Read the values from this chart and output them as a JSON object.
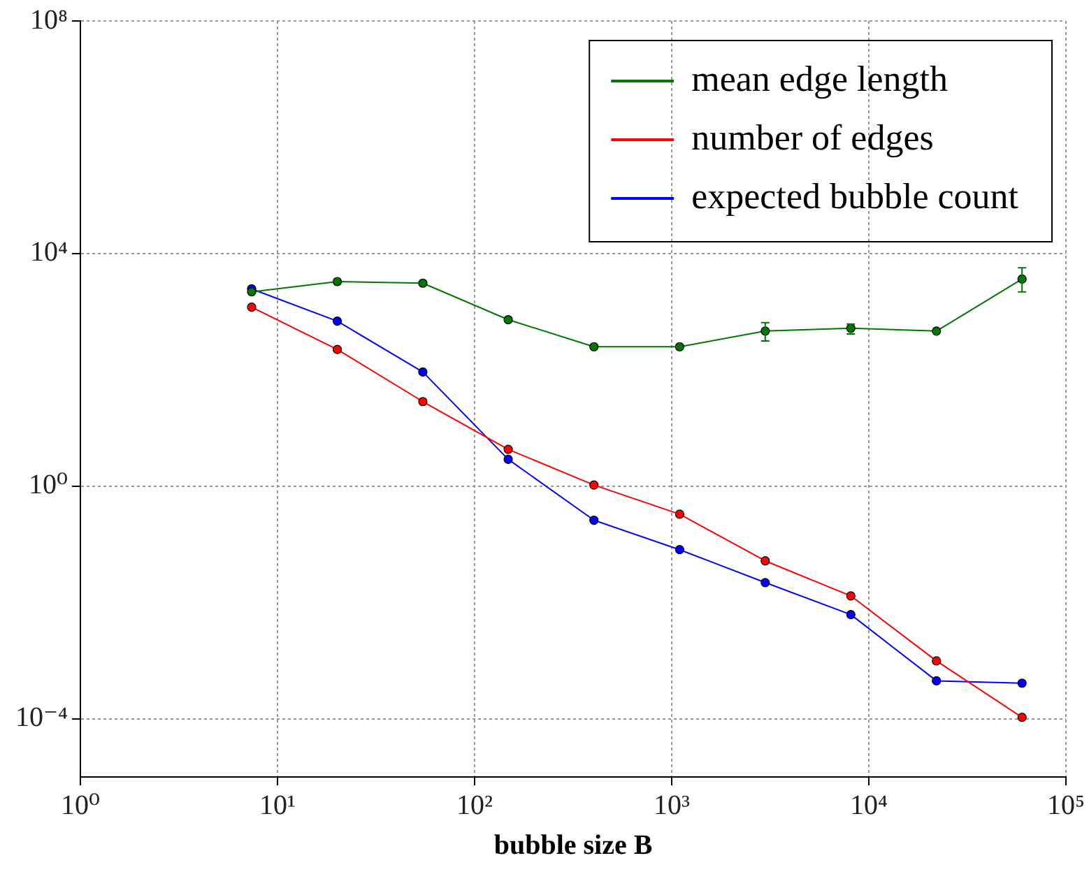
{
  "chart_data": {
    "type": "line",
    "xlabel": "bubble size B",
    "log": "xy",
    "grid": true,
    "legend": "top right",
    "marker": "circle",
    "line_style": "solid",
    "x": [
      7.39,
      20.1,
      54.6,
      148,
      403,
      1097,
      2981,
      8103,
      22026,
      59874
    ],
    "xlim": [
      1,
      100000
    ],
    "xticks": [
      {
        "value": 1,
        "label": "10⁰"
      },
      {
        "value": 10,
        "label": "10¹"
      },
      {
        "value": 100,
        "label": "10²"
      },
      {
        "value": 1000,
        "label": "10³"
      },
      {
        "value": 10000,
        "label": "10⁴"
      },
      {
        "value": 100000,
        "label": "10⁵"
      }
    ],
    "ylim": [
      1e-05,
      100000000
    ],
    "yticks": [
      {
        "value": 0.0001,
        "label": "10⁻⁴"
      },
      {
        "value": 1,
        "label": "10⁰"
      },
      {
        "value": 10000,
        "label": "10⁴"
      },
      {
        "value": 100000000,
        "label": "10⁸"
      }
    ],
    "series": [
      {
        "name": "mean edge length",
        "color": "#007700",
        "values": [
          2200,
          3300,
          3100,
          730,
          250,
          250,
          465,
          520,
          465,
          3650
        ],
        "errors": [
          null,
          null,
          null,
          null,
          null,
          null,
          [
            315,
            650
          ],
          [
            415,
            615
          ],
          null,
          [
            2200,
            5700
          ]
        ]
      },
      {
        "name": "number of edges",
        "color": "#ff0000",
        "values": [
          1200,
          225,
          28.5,
          4.3,
          1.05,
          0.33,
          0.052,
          0.013,
          0.00099,
          0.000106
        ]
      },
      {
        "name": "expected bubble count",
        "color": "#0000ff",
        "values": [
          2470,
          690,
          92,
          2.9,
          0.26,
          0.081,
          0.022,
          0.0062,
          0.00045,
          0.00041
        ]
      }
    ]
  }
}
